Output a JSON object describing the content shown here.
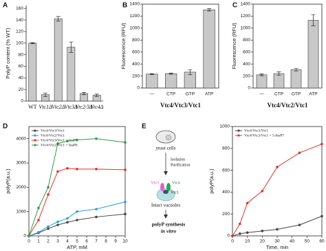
{
  "chart_data": [
    {
      "type": "bar",
      "panel": "A",
      "y_label": "PolyP content (% WT)",
      "frame": false,
      "categories": [
        "WT",
        "Vtc1Δ",
        "Vtc2Δ",
        "Vtc3Δ",
        "Vtc2/3Δ",
        "Vtc4Δ"
      ],
      "values": [
        100,
        11,
        142,
        93,
        13,
        10
      ],
      "errors": [
        1,
        3,
        4,
        9,
        2,
        2
      ],
      "color": "#c8c8c8",
      "ylim": [
        0,
        165
      ],
      "yticks": [
        0,
        20,
        40,
        60,
        80,
        100,
        120,
        140,
        160
      ]
    },
    {
      "type": "bar",
      "panel": "B",
      "y_label": "Fluorescence (RFU)",
      "x_label": "Vtc4/Vtc3/Vtc1",
      "frame": true,
      "categories": [
        "—",
        "CTP",
        "GTP",
        "ATP"
      ],
      "values": [
        232,
        240,
        265,
        1305
      ],
      "errors": [
        8,
        10,
        40,
        20
      ],
      "color": "#c8c8c8",
      "ylim": [
        0,
        1400
      ],
      "yticks": [
        0,
        200,
        400,
        600,
        800,
        1000,
        1200,
        1400
      ]
    },
    {
      "type": "bar",
      "panel": "C",
      "y_label": "Fluorescence (RFU)",
      "x_label": "Vtc4/Vtc2/Vtc1",
      "frame": true,
      "categories": [
        "—",
        "CTP",
        "GTP",
        "ATP"
      ],
      "values": [
        220,
        240,
        305,
        1130
      ],
      "errors": [
        15,
        30,
        20,
        90
      ],
      "color": "#c8c8c8",
      "ylim": [
        0,
        1400
      ],
      "yticks": [
        0,
        200,
        400,
        600,
        800,
        1000,
        1200,
        1400
      ]
    },
    {
      "type": "line",
      "panel": "D",
      "y_label": "polyP(a.u.)",
      "x_label": "ATP, mM",
      "frame": true,
      "x": [
        0,
        1,
        2,
        3,
        4,
        5,
        7,
        10
      ],
      "xlim": [
        0,
        10
      ],
      "xticks": [
        0,
        1,
        2,
        3,
        4,
        5,
        6,
        7,
        8,
        9,
        10
      ],
      "ylim": [
        0,
        4500
      ],
      "yticks": [
        0,
        1000,
        2000,
        3000,
        4000
      ],
      "series": [
        {
          "name": "Vtc4/Vtc3/Vtc1",
          "color": "#444444",
          "values": [
            0,
            120,
            300,
            450,
            560,
            650,
            780,
            900
          ]
        },
        {
          "name": "Vtc4/Vtc2/Vtc1",
          "color": "#2a9fd8",
          "values": [
            0,
            150,
            380,
            580,
            720,
            1000,
            1100,
            1400
          ]
        },
        {
          "name": "Vtc4/Vtc3/Vtc1 + InsP6",
          "color": "#e0312b",
          "values": [
            0,
            650,
            1700,
            2650,
            2780,
            2750,
            2750,
            2720
          ]
        },
        {
          "name": "Vtc4/Vtc2/Vtc1 + InsP6",
          "color": "#2f9a4a",
          "values": [
            0,
            1150,
            2000,
            3800,
            3900,
            3950,
            4000,
            3850
          ]
        }
      ]
    },
    {
      "type": "line",
      "panel": "E",
      "y_label": "polyP(a.u.)",
      "x_label": "Time, min",
      "frame": true,
      "x": [
        0,
        5,
        10,
        20,
        30,
        45,
        60
      ],
      "xlim": [
        0,
        60
      ],
      "xticks": [
        0,
        10,
        20,
        30,
        40,
        50,
        60
      ],
      "ylim": [
        0,
        1000
      ],
      "yticks": [
        0,
        200,
        400,
        600,
        800,
        1000
      ],
      "series": [
        {
          "name": "Vtc4/Vtc3/Vtc1",
          "color": "#444444",
          "values": [
            0,
            20,
            30,
            45,
            60,
            100,
            180
          ]
        },
        {
          "name": "Vtc4/Vtc3/Vtc1 + 5-InsP7",
          "color": "#e0312b",
          "values": [
            0,
            110,
            300,
            410,
            630,
            760,
            840
          ]
        }
      ]
    }
  ],
  "diagram": {
    "cells": "yeast cells",
    "step1": "Isolation",
    "step2": "Purification",
    "sub3": "Vtc3",
    "sub4": "Vtc4",
    "sub1": "Vtc1",
    "vacuoles": "Intact vacuoles",
    "result": "polyP synthesis",
    "result_note": "in vitro"
  }
}
